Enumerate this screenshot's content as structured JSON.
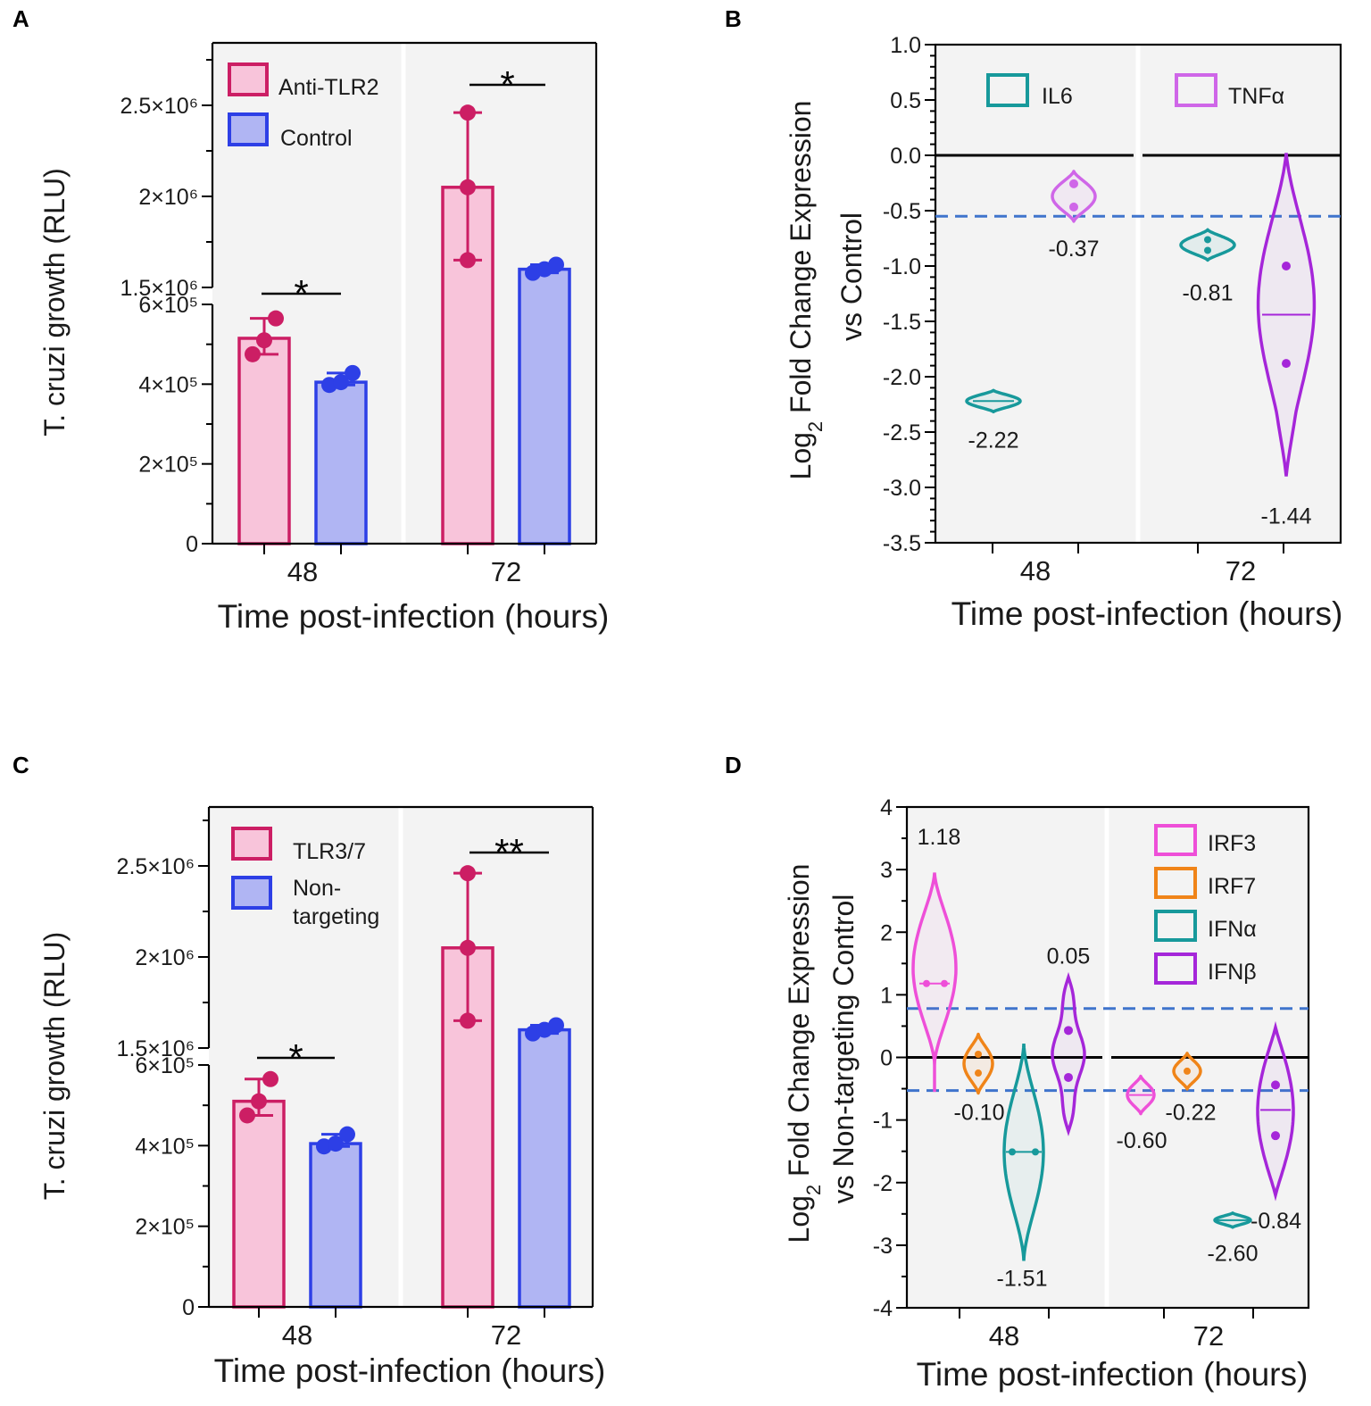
{
  "colors": {
    "pink_edge": "#cc1e64",
    "pink_fill": "#f8c4da",
    "blue_edge": "#2d3fe6",
    "blue_fill": "#b0b5f3",
    "teal": "#17999b",
    "violet_tnf": "#cf66e8",
    "magenta": "#ee4fd8",
    "orange": "#f08418",
    "purple": "#a526d9",
    "dash": "#3f74cc",
    "panel_bg": "#f3f3f3"
  },
  "chart_data": [
    {
      "panel": "A",
      "type": "bar",
      "xlabel": "Time post-infection (hours)",
      "ylabel": "T. cruzi growth (RLU)",
      "categories": [
        "48",
        "72"
      ],
      "yticks_lower": [
        "0",
        "2×10⁵",
        "4×10⁵",
        "6×10⁵"
      ],
      "yticks_upper": [
        "1.5×10⁶",
        "2×10⁶",
        "2.5×10⁶"
      ],
      "y_break": [
        600000,
        1500000
      ],
      "legend": [
        "Anti-TLR2",
        "Control"
      ],
      "series": [
        {
          "name": "Anti-TLR2",
          "values": [
            515000,
            2050000
          ],
          "points": [
            [
              475000,
              510000,
              565000
            ],
            [
              1650000,
              2050000,
              2460000
            ]
          ]
        },
        {
          "name": "Control",
          "values": [
            405000,
            1600000
          ],
          "points": [
            [
              398000,
              405000,
              428000
            ],
            [
              1580000,
              1600000,
              1625000
            ]
          ]
        }
      ],
      "significance": [
        "*",
        "*"
      ]
    },
    {
      "panel": "B",
      "type": "violin",
      "xlabel": "Time post-infection (hours)",
      "ylabel_line1": "Log",
      "ylabel_sub": "2",
      "ylabel_rest": " Fold Change Expression",
      "ylabel_line2": "vs  Control",
      "ylim": [
        -3.5,
        1.0
      ],
      "yticks": [
        "1.0",
        "0.5",
        "0.0",
        "-0.5",
        "-1.0",
        "-1.5",
        "-2.0",
        "-2.5",
        "-3.0",
        "-3.5"
      ],
      "categories": [
        "48",
        "72"
      ],
      "legend": [
        "IL6",
        "TNFα"
      ],
      "threshold": -0.55,
      "series": [
        {
          "name": "IL6",
          "values": [
            -2.22,
            -0.81
          ],
          "labels": [
            "-2.22",
            "-0.81"
          ]
        },
        {
          "name": "TNFα",
          "values": [
            -0.37,
            -1.44
          ],
          "labels": [
            "-0.37",
            "-1.44"
          ]
        }
      ]
    },
    {
      "panel": "C",
      "type": "bar",
      "xlabel": "Time post-infection (hours)",
      "ylabel": "T. cruzi growth (RLU)",
      "categories": [
        "48",
        "72"
      ],
      "yticks_lower": [
        "0",
        "2×10⁵",
        "4×10⁵",
        "6×10⁵"
      ],
      "yticks_upper": [
        "1.5×10⁶",
        "2×10⁶",
        "2.5×10⁶"
      ],
      "y_break": [
        600000,
        1500000
      ],
      "legend": [
        "TLR3/7",
        "Non-",
        "targeting"
      ],
      "series": [
        {
          "name": "TLR3/7",
          "values": [
            510000,
            2050000
          ],
          "points": [
            [
              475000,
              510000,
              565000
            ],
            [
              1650000,
              2050000,
              2460000
            ]
          ]
        },
        {
          "name": "Non-targeting",
          "values": [
            405000,
            1600000
          ],
          "points": [
            [
              398000,
              405000,
              428000
            ],
            [
              1580000,
              1600000,
              1625000
            ]
          ]
        }
      ],
      "significance": [
        "*",
        "**"
      ]
    },
    {
      "panel": "D",
      "type": "violin",
      "xlabel": "Time post-infection (hours)",
      "ylabel_line1": "Log",
      "ylabel_sub": "2",
      "ylabel_rest": " Fold Change Expression",
      "ylabel_line2": "vs Non-targeting Control",
      "ylim": [
        -4,
        4
      ],
      "yticks": [
        "4",
        "3",
        "2",
        "1",
        "0",
        "-1",
        "-2",
        "-3",
        "-4"
      ],
      "categories": [
        "48",
        "72"
      ],
      "legend": [
        "IRF3",
        "IRF7",
        "IFNα",
        "IFNβ"
      ],
      "thresholds": [
        0.78,
        -0.53
      ],
      "series": [
        {
          "name": "IRF3",
          "values": [
            1.18,
            -0.6
          ],
          "labels": [
            "1.18",
            "-0.60"
          ]
        },
        {
          "name": "IRF7",
          "values": [
            -0.1,
            -0.22
          ],
          "labels": [
            "-0.10",
            "-0.22"
          ]
        },
        {
          "name": "IFNα",
          "values": [
            -1.51,
            -2.6
          ],
          "labels": [
            "-1.51",
            "-2.60"
          ]
        },
        {
          "name": "IFNβ",
          "values": [
            0.05,
            -0.84
          ],
          "labels": [
            "0.05",
            "-0.84"
          ]
        }
      ]
    }
  ]
}
